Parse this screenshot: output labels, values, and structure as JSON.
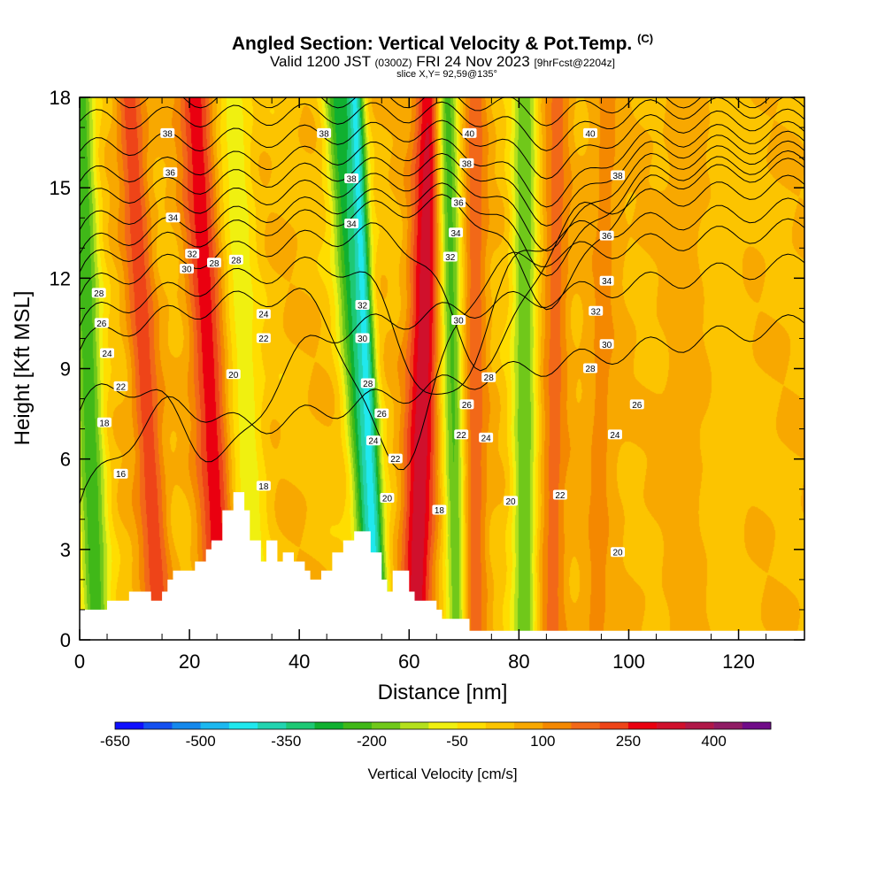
{
  "chart_data": {
    "type": "heatmap",
    "title": "Angled Section: Vertical Velocity & Pot.Temp.",
    "title_units": "(C)",
    "subtitle_main": "Valid 1200 JST",
    "subtitle_utc": "(0300Z)",
    "subtitle_date": "FRI 24 Nov 2023",
    "subtitle_fcst": "[9hrFcst@2204z]",
    "slice_label": "slice X,Y= 92,59@135°",
    "xlabel": "Distance [nm]",
    "ylabel": "Height [Kft MSL]",
    "xlim": [
      0,
      132
    ],
    "ylim": [
      0,
      18
    ],
    "x_ticks": [
      "0",
      "20",
      "40",
      "60",
      "80",
      "100",
      "120"
    ],
    "y_ticks": [
      "0",
      "3",
      "6",
      "9",
      "12",
      "15",
      "18"
    ],
    "colorbar": {
      "title": "Vertical Velocity [cm/s]",
      "colors": [
        "#1010ff",
        "#1450f0",
        "#1488ec",
        "#1cb8f0",
        "#20e8ee",
        "#22d4b0",
        "#1ec874",
        "#10b030",
        "#40b818",
        "#70c81a",
        "#b4e01c",
        "#f0f010",
        "#ffdd00",
        "#fcc400",
        "#f8a800",
        "#f48800",
        "#f26818",
        "#ee4418",
        "#ea0010",
        "#d0102c",
        "#b01848",
        "#901c64",
        "#700c88"
      ],
      "labels": [
        "-650",
        "-500",
        "-350",
        "-200",
        "-50",
        "100",
        "250",
        "400"
      ]
    },
    "vertical_velocity_bands": [
      {
        "x_at_0": 3,
        "x_at_18": 0,
        "half_width_nm": 2.6,
        "value": -240
      },
      {
        "x_at_0": 14.5,
        "x_at_18": 9,
        "half_width_nm": 2.6,
        "value": 230
      },
      {
        "x_at_0": 26,
        "x_at_18": 21,
        "half_width_nm": 3.2,
        "value": 280
      },
      {
        "x_at_0": 32,
        "x_at_18": 28,
        "half_width_nm": 3.0,
        "value": -80
      },
      {
        "x_at_0": 54,
        "x_at_18": 47,
        "half_width_nm": 2.8,
        "value": -280
      },
      {
        "x_at_0": 54,
        "x_at_18": 50,
        "half_width_nm": 1.6,
        "value": -420
      },
      {
        "x_at_0": 61,
        "x_at_18": 64,
        "half_width_nm": 3.0,
        "value": 340
      },
      {
        "x_at_0": 69,
        "x_at_18": 67,
        "half_width_nm": 2.2,
        "value": -220
      },
      {
        "x_at_0": 72,
        "x_at_18": 72,
        "half_width_nm": 2.2,
        "value": 180
      },
      {
        "x_at_0": 81,
        "x_at_18": 81,
        "half_width_nm": 2.4,
        "value": -200
      },
      {
        "x_at_0": 86,
        "x_at_18": 87,
        "half_width_nm": 2.4,
        "value": 170
      },
      {
        "x_at_0": 94,
        "x_at_18": 96,
        "half_width_nm": 3.5,
        "value": 110
      },
      {
        "x_at_0": 110,
        "x_at_18": 110,
        "half_width_nm": 6.0,
        "value": 60
      },
      {
        "x_at_0": 118,
        "x_at_18": 118,
        "half_width_nm": 3.0,
        "value": 20
      }
    ],
    "terrain_kft": [
      [
        0,
        1.0
      ],
      [
        5,
        1.0
      ],
      [
        5,
        1.3
      ],
      [
        9,
        1.3
      ],
      [
        9,
        1.6
      ],
      [
        13,
        1.6
      ],
      [
        13,
        1.3
      ],
      [
        15,
        1.3
      ],
      [
        15,
        1.6
      ],
      [
        16,
        1.6
      ],
      [
        16,
        2.0
      ],
      [
        17,
        2.0
      ],
      [
        17,
        2.3
      ],
      [
        21,
        2.3
      ],
      [
        21,
        2.6
      ],
      [
        23,
        2.6
      ],
      [
        23,
        3.0
      ],
      [
        24,
        3.0
      ],
      [
        24,
        3.3
      ],
      [
        26,
        3.3
      ],
      [
        26,
        4.3
      ],
      [
        28,
        4.3
      ],
      [
        28,
        4.9
      ],
      [
        30,
        4.9
      ],
      [
        30,
        4.3
      ],
      [
        31,
        4.3
      ],
      [
        31,
        3.3
      ],
      [
        33,
        3.3
      ],
      [
        33,
        2.6
      ],
      [
        34,
        2.6
      ],
      [
        34,
        3.3
      ],
      [
        36,
        3.3
      ],
      [
        36,
        2.6
      ],
      [
        37,
        2.6
      ],
      [
        37,
        2.9
      ],
      [
        39,
        2.9
      ],
      [
        39,
        2.6
      ],
      [
        41,
        2.6
      ],
      [
        41,
        2.3
      ],
      [
        42,
        2.3
      ],
      [
        42,
        2.0
      ],
      [
        44,
        2.0
      ],
      [
        44,
        2.3
      ],
      [
        46,
        2.3
      ],
      [
        46,
        2.9
      ],
      [
        48,
        2.9
      ],
      [
        48,
        3.3
      ],
      [
        50,
        3.3
      ],
      [
        50,
        3.6
      ],
      [
        53,
        3.6
      ],
      [
        53,
        2.9
      ],
      [
        55,
        2.9
      ],
      [
        55,
        2.0
      ],
      [
        56,
        2.0
      ],
      [
        56,
        1.6
      ],
      [
        57,
        1.6
      ],
      [
        57,
        2.3
      ],
      [
        60,
        2.3
      ],
      [
        60,
        1.6
      ],
      [
        61,
        1.6
      ],
      [
        61,
        1.3
      ],
      [
        65,
        1.3
      ],
      [
        65,
        1.0
      ],
      [
        66,
        1.0
      ],
      [
        66,
        0.7
      ],
      [
        71,
        0.7
      ],
      [
        71,
        0.3
      ],
      [
        132,
        0.3
      ]
    ],
    "potential_temperature_isotherms": [
      {
        "label": "16",
        "y_left": 4.4,
        "dip_x": 16,
        "dip_depth": -1.6,
        "y_right": 14.6
      },
      {
        "label": "18",
        "y_left": 7.6,
        "dip_x": 26,
        "dip_depth": 3.4,
        "y_right": 15.8
      },
      {
        "label": "20",
        "y_left": 9.6,
        "dip_x": 58,
        "dip_depth": 6.2,
        "y_right": 16.4
      },
      {
        "label": "22",
        "y_left": 10.4,
        "dip_x": 66,
        "dip_depth": 5.2,
        "y_right": 17.0
      },
      {
        "label": "24",
        "y_left": 11.4,
        "dip_x": 74,
        "dip_depth": 4.8,
        "y_right": 17.6
      },
      {
        "label": "26",
        "y_left": 12.2,
        "dip_x": 86,
        "dip_depth": 3.6,
        "y_right": 18.0
      },
      {
        "label": "28",
        "y_left": 12.8,
        "dip_x": 86,
        "dip_depth": 2.8,
        "y_right": 18.0
      },
      {
        "label": "30",
        "y_left": 13.6,
        "dip_x": 86,
        "dip_depth": 2.4,
        "y_right": 18.0
      },
      {
        "label": "32",
        "y_left": 14.4,
        "dip_x": 86,
        "dip_depth": 2.0,
        "y_right": 18.0
      },
      {
        "label": "34",
        "y_left": 15.2,
        "dip_x": 86,
        "dip_depth": 1.8,
        "y_right": 18.0
      },
      {
        "label": "36",
        "y_left": 16.2,
        "dip_x": 86,
        "dip_depth": 1.4,
        "y_right": 18.0
      },
      {
        "label": "38",
        "y_left": 17.2,
        "dip_x": 86,
        "dip_depth": 1.0,
        "y_right": 18.0
      },
      {
        "label": "40",
        "y_left": 18.0,
        "dip_x": 86,
        "dip_depth": 0.6,
        "y_right": 18.0
      }
    ],
    "contour_labels": [
      {
        "text": "16",
        "x": 7.5,
        "y": 5.5
      },
      {
        "text": "18",
        "x": 4.5,
        "y": 7.2
      },
      {
        "text": "22",
        "x": 7.5,
        "y": 8.4
      },
      {
        "text": "24",
        "x": 5.0,
        "y": 9.5
      },
      {
        "text": "26",
        "x": 4.0,
        "y": 10.5
      },
      {
        "text": "28",
        "x": 3.5,
        "y": 11.5
      },
      {
        "text": "30",
        "x": 19.5,
        "y": 12.3
      },
      {
        "text": "32",
        "x": 20.5,
        "y": 12.8
      },
      {
        "text": "28",
        "x": 24.5,
        "y": 12.5
      },
      {
        "text": "28",
        "x": 28.5,
        "y": 12.6
      },
      {
        "text": "34",
        "x": 17.0,
        "y": 14.0
      },
      {
        "text": "36",
        "x": 16.5,
        "y": 15.5
      },
      {
        "text": "38",
        "x": 16.0,
        "y": 16.8
      },
      {
        "text": "38",
        "x": 44.5,
        "y": 16.8
      },
      {
        "text": "38",
        "x": 49.5,
        "y": 15.3
      },
      {
        "text": "34",
        "x": 49.5,
        "y": 13.8
      },
      {
        "text": "32",
        "x": 51.5,
        "y": 11.1
      },
      {
        "text": "30",
        "x": 51.5,
        "y": 10.0
      },
      {
        "text": "28",
        "x": 52.5,
        "y": 8.5
      },
      {
        "text": "26",
        "x": 55.0,
        "y": 7.5
      },
      {
        "text": "24",
        "x": 53.5,
        "y": 6.6
      },
      {
        "text": "22",
        "x": 57.5,
        "y": 6.0
      },
      {
        "text": "20",
        "x": 56.0,
        "y": 4.7
      },
      {
        "text": "18",
        "x": 65.5,
        "y": 4.3
      },
      {
        "text": "18",
        "x": 33.5,
        "y": 5.1
      },
      {
        "text": "22",
        "x": 33.5,
        "y": 10.0
      },
      {
        "text": "24",
        "x": 33.5,
        "y": 10.8
      },
      {
        "text": "20",
        "x": 28.0,
        "y": 8.8
      },
      {
        "text": "40",
        "x": 71.0,
        "y": 16.8
      },
      {
        "text": "38",
        "x": 70.5,
        "y": 15.8
      },
      {
        "text": "36",
        "x": 69.0,
        "y": 14.5
      },
      {
        "text": "34",
        "x": 68.5,
        "y": 13.5
      },
      {
        "text": "32",
        "x": 67.5,
        "y": 12.7
      },
      {
        "text": "30",
        "x": 69.0,
        "y": 10.6
      },
      {
        "text": "28",
        "x": 74.5,
        "y": 8.7
      },
      {
        "text": "26",
        "x": 70.5,
        "y": 7.8
      },
      {
        "text": "24",
        "x": 74.0,
        "y": 6.7
      },
      {
        "text": "22",
        "x": 69.5,
        "y": 6.8
      },
      {
        "text": "20",
        "x": 78.5,
        "y": 4.6
      },
      {
        "text": "22",
        "x": 87.5,
        "y": 4.8
      },
      {
        "text": "40",
        "x": 93.0,
        "y": 16.8
      },
      {
        "text": "38",
        "x": 98.0,
        "y": 15.4
      },
      {
        "text": "36",
        "x": 96.0,
        "y": 13.4
      },
      {
        "text": "34",
        "x": 96.0,
        "y": 11.9
      },
      {
        "text": "32",
        "x": 94.0,
        "y": 10.9
      },
      {
        "text": "30",
        "x": 96.0,
        "y": 9.8
      },
      {
        "text": "28",
        "x": 93.0,
        "y": 9.0
      },
      {
        "text": "26",
        "x": 101.5,
        "y": 7.8
      },
      {
        "text": "24",
        "x": 97.5,
        "y": 6.8
      },
      {
        "text": "20",
        "x": 98.0,
        "y": 2.9
      }
    ]
  }
}
